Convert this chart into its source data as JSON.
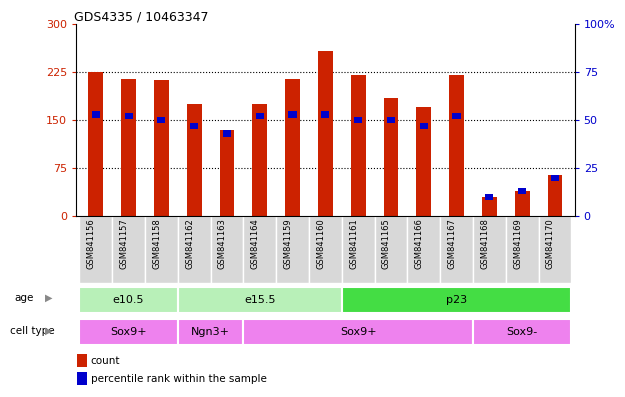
{
  "title": "GDS4335 / 10463347",
  "samples": [
    "GSM841156",
    "GSM841157",
    "GSM841158",
    "GSM841162",
    "GSM841163",
    "GSM841164",
    "GSM841159",
    "GSM841160",
    "GSM841161",
    "GSM841165",
    "GSM841166",
    "GSM841167",
    "GSM841168",
    "GSM841169",
    "GSM841170"
  ],
  "counts": [
    225,
    215,
    213,
    175,
    135,
    175,
    215,
    258,
    220,
    185,
    170,
    220,
    30,
    40,
    65
  ],
  "percentile_ranks": [
    53,
    52,
    50,
    47,
    43,
    52,
    53,
    53,
    50,
    50,
    47,
    52,
    10,
    13,
    20
  ],
  "ylim_left": [
    0,
    300
  ],
  "ylim_right": [
    0,
    100
  ],
  "yticks_left": [
    0,
    75,
    150,
    225,
    300
  ],
  "yticks_right": [
    0,
    25,
    50,
    75,
    100
  ],
  "bar_color": "#cc2200",
  "percentile_color": "#0000cc",
  "age_groups": [
    {
      "label": "e10.5",
      "start": 0,
      "end": 3,
      "color": "#b8f0b8"
    },
    {
      "label": "e15.5",
      "start": 3,
      "end": 8,
      "color": "#b8f0b8"
    },
    {
      "label": "p23",
      "start": 8,
      "end": 15,
      "color": "#44dd44"
    }
  ],
  "cell_type_groups": [
    {
      "label": "Sox9+",
      "start": 0,
      "end": 3,
      "color": "#ee82ee"
    },
    {
      "label": "Ngn3+",
      "start": 3,
      "end": 5,
      "color": "#ee82ee"
    },
    {
      "label": "Sox9+",
      "start": 5,
      "end": 12,
      "color": "#ee82ee"
    },
    {
      "label": "Sox9-",
      "start": 12,
      "end": 15,
      "color": "#ee82ee"
    }
  ],
  "xtick_bg": "#d8d8d8",
  "grid_dotted_color": "#666666"
}
